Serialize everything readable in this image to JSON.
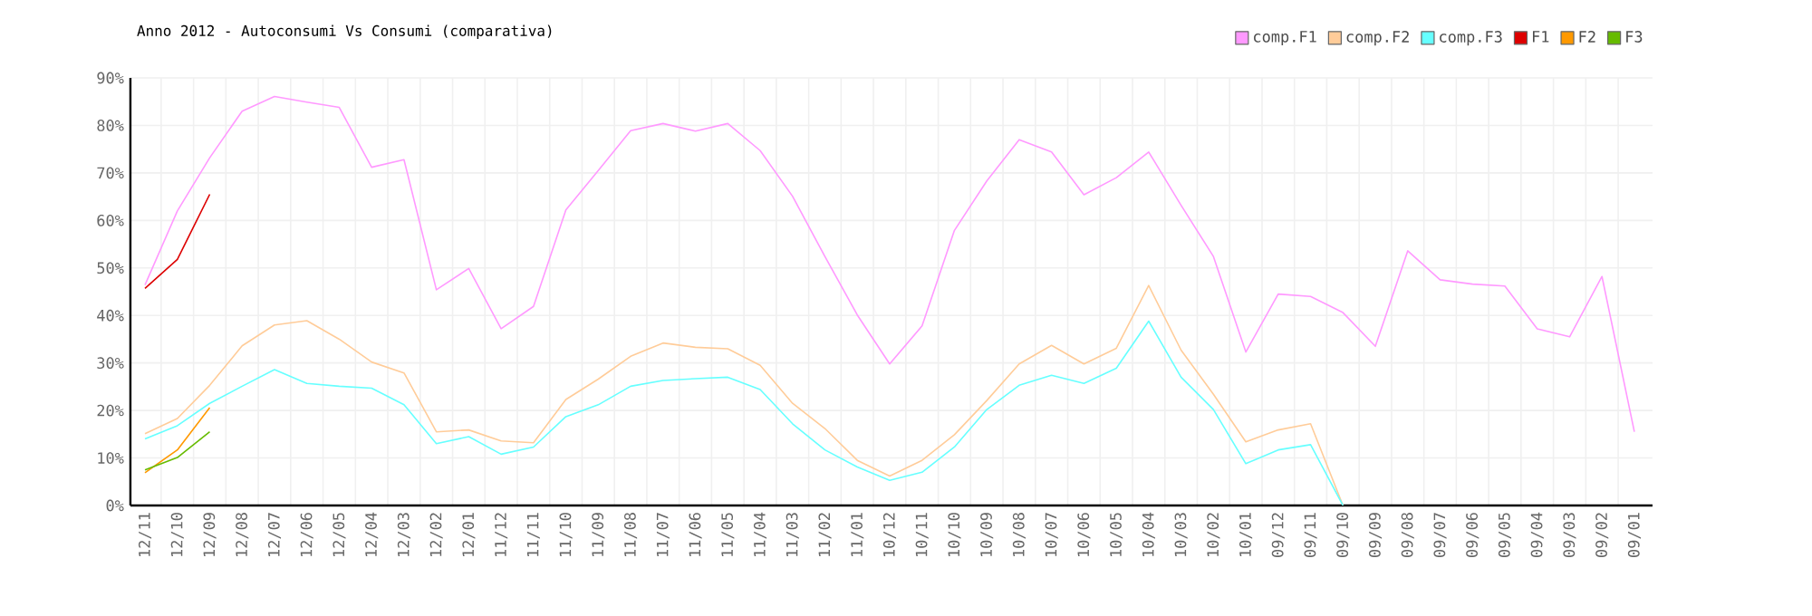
{
  "chart_data": {
    "type": "line",
    "title": "Anno 2012 - Autoconsumi Vs Consumi (comparativa)",
    "categories": [
      "12/11",
      "12/10",
      "12/09",
      "12/08",
      "12/07",
      "12/06",
      "12/05",
      "12/04",
      "12/03",
      "12/02",
      "12/01",
      "11/12",
      "11/11",
      "11/10",
      "11/09",
      "11/08",
      "11/07",
      "11/06",
      "11/05",
      "11/04",
      "11/03",
      "11/02",
      "11/01",
      "10/12",
      "10/11",
      "10/10",
      "10/09",
      "10/08",
      "10/07",
      "10/06",
      "10/05",
      "10/04",
      "10/03",
      "10/02",
      "10/01",
      "09/12",
      "09/11",
      "09/10",
      "09/09",
      "09/08",
      "09/07",
      "09/06",
      "09/05",
      "09/04",
      "09/03",
      "09/02",
      "09/01"
    ],
    "series": [
      {
        "name": "comp.F1",
        "color": "#ff99ff",
        "values": [
          46.4,
          62,
          73.2,
          83,
          86.1,
          84.9,
          83.8,
          71.2,
          72.8,
          45.4,
          49.9,
          37.2,
          41.9,
          62.2,
          70.5,
          78.9,
          80.4,
          78.8,
          80.4,
          74.7,
          65.1,
          52.4,
          40.1,
          29.8,
          37.8,
          57.9,
          68.3,
          77.0,
          74.4,
          65.4,
          69.0,
          74.4,
          63.2,
          52.4,
          32.3,
          44.5,
          44.0,
          40.6,
          33.5,
          53.6,
          47.5,
          46.6,
          46.2,
          37.2,
          35.5,
          48.2,
          15.5
        ]
      },
      {
        "name": "comp.F2",
        "color": "#ffcc99",
        "values": [
          15.1,
          18.3,
          25.3,
          33.6,
          38.0,
          38.9,
          35.0,
          30.2,
          27.9,
          15.5,
          15.9,
          13.6,
          13.2,
          22.3,
          26.6,
          31.4,
          34.2,
          33.3,
          33.0,
          29.5,
          21.5,
          16.2,
          9.5,
          6.2,
          9.5,
          14.9,
          22.1,
          29.8,
          33.7,
          29.8,
          33.1,
          46.3,
          32.7,
          23.4,
          13.4,
          15.9,
          17.2,
          0,
          null,
          null,
          null,
          null,
          null,
          null,
          null,
          null,
          null
        ]
      },
      {
        "name": "comp.F3",
        "color": "#66ffff",
        "values": [
          14.0,
          16.8,
          21.5,
          25.1,
          28.6,
          25.7,
          25.1,
          24.7,
          21.2,
          13.0,
          14.5,
          10.8,
          12.3,
          18.7,
          21.2,
          25.1,
          26.3,
          26.7,
          27.0,
          24.4,
          17.2,
          11.7,
          8.1,
          5.3,
          7.0,
          12.3,
          20.2,
          25.3,
          27.4,
          25.7,
          28.9,
          38.8,
          27.0,
          20.2,
          8.8,
          11.7,
          12.8,
          0,
          null,
          null,
          null,
          null,
          null,
          null,
          null,
          null,
          null
        ]
      },
      {
        "name": "F1",
        "color": "#dd0000",
        "values": [
          45.7,
          51.8,
          65.5,
          null,
          null,
          null,
          null,
          null,
          null,
          null,
          null,
          null,
          null,
          null,
          null,
          null,
          null,
          null,
          null,
          null,
          null,
          null,
          null,
          null,
          null,
          null,
          null,
          null,
          null,
          null,
          null,
          null,
          null,
          null,
          null,
          null,
          null,
          null,
          null,
          null,
          null,
          null,
          null,
          null,
          null,
          null,
          null
        ]
      },
      {
        "name": "F2",
        "color": "#ff9900",
        "values": [
          6.9,
          11.7,
          20.6,
          null,
          null,
          null,
          null,
          null,
          null,
          null,
          null,
          null,
          null,
          null,
          null,
          null,
          null,
          null,
          null,
          null,
          null,
          null,
          null,
          null,
          null,
          null,
          null,
          null,
          null,
          null,
          null,
          null,
          null,
          null,
          null,
          null,
          null,
          null,
          null,
          null,
          null,
          null,
          null,
          null,
          null,
          null,
          null
        ]
      },
      {
        "name": "F3",
        "color": "#66bb00",
        "values": [
          7.5,
          10.1,
          15.5,
          null,
          null,
          null,
          null,
          null,
          null,
          null,
          null,
          null,
          null,
          null,
          null,
          null,
          null,
          null,
          null,
          null,
          null,
          null,
          null,
          null,
          null,
          null,
          null,
          null,
          null,
          null,
          null,
          null,
          null,
          null,
          null,
          null,
          null,
          null,
          null,
          null,
          null,
          null,
          null,
          null,
          null,
          null,
          null
        ]
      }
    ],
    "ylim": [
      0,
      90
    ],
    "yticks": [
      {
        "value": 0,
        "label": "0%"
      },
      {
        "value": 10,
        "label": "10%"
      },
      {
        "value": 20,
        "label": "20%"
      },
      {
        "value": 30,
        "label": "30%"
      },
      {
        "value": 40,
        "label": "40%"
      },
      {
        "value": 50,
        "label": "50%"
      },
      {
        "value": 60,
        "label": "60%"
      },
      {
        "value": 70,
        "label": "70%"
      },
      {
        "value": 80,
        "label": "80%"
      },
      {
        "value": 90,
        "label": "90%"
      }
    ],
    "grid": true,
    "legend": "top right",
    "marker": "none",
    "line_style": "solid"
  }
}
